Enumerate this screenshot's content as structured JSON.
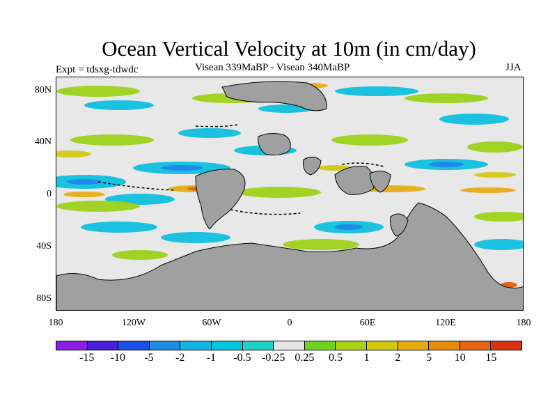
{
  "title": "Ocean Vertical Velocity at 10m (in cm/day)",
  "experiment": "Expt = tdsxg-tdwdc",
  "comparison": "Visean 339MaBP - Visean  340MaBP",
  "season": "JJA",
  "lat_labels": [
    "80N",
    "40N",
    "0",
    "40S",
    "80S"
  ],
  "lon_labels": [
    "180",
    "120W",
    "60W",
    "0",
    "60E",
    "120E",
    "180"
  ],
  "colorbar": {
    "colors": [
      "#8a1ee6",
      "#4b1edc",
      "#1e50e6",
      "#1e8ce6",
      "#10b4e6",
      "#00c8dc",
      "#1ed2c8",
      "#e6e6e6",
      "#6ed21e",
      "#aad214",
      "#d2c80a",
      "#e6aa0a",
      "#e68c0a",
      "#e66414",
      "#dc3214"
    ],
    "labels": [
      "-15",
      "-10",
      "-5",
      "-2",
      "-1",
      "-0.5",
      "-0.25",
      "0.25",
      "0.5",
      "1",
      "2",
      "5",
      "10",
      "15"
    ]
  },
  "land_color": "#a0a0a0"
}
